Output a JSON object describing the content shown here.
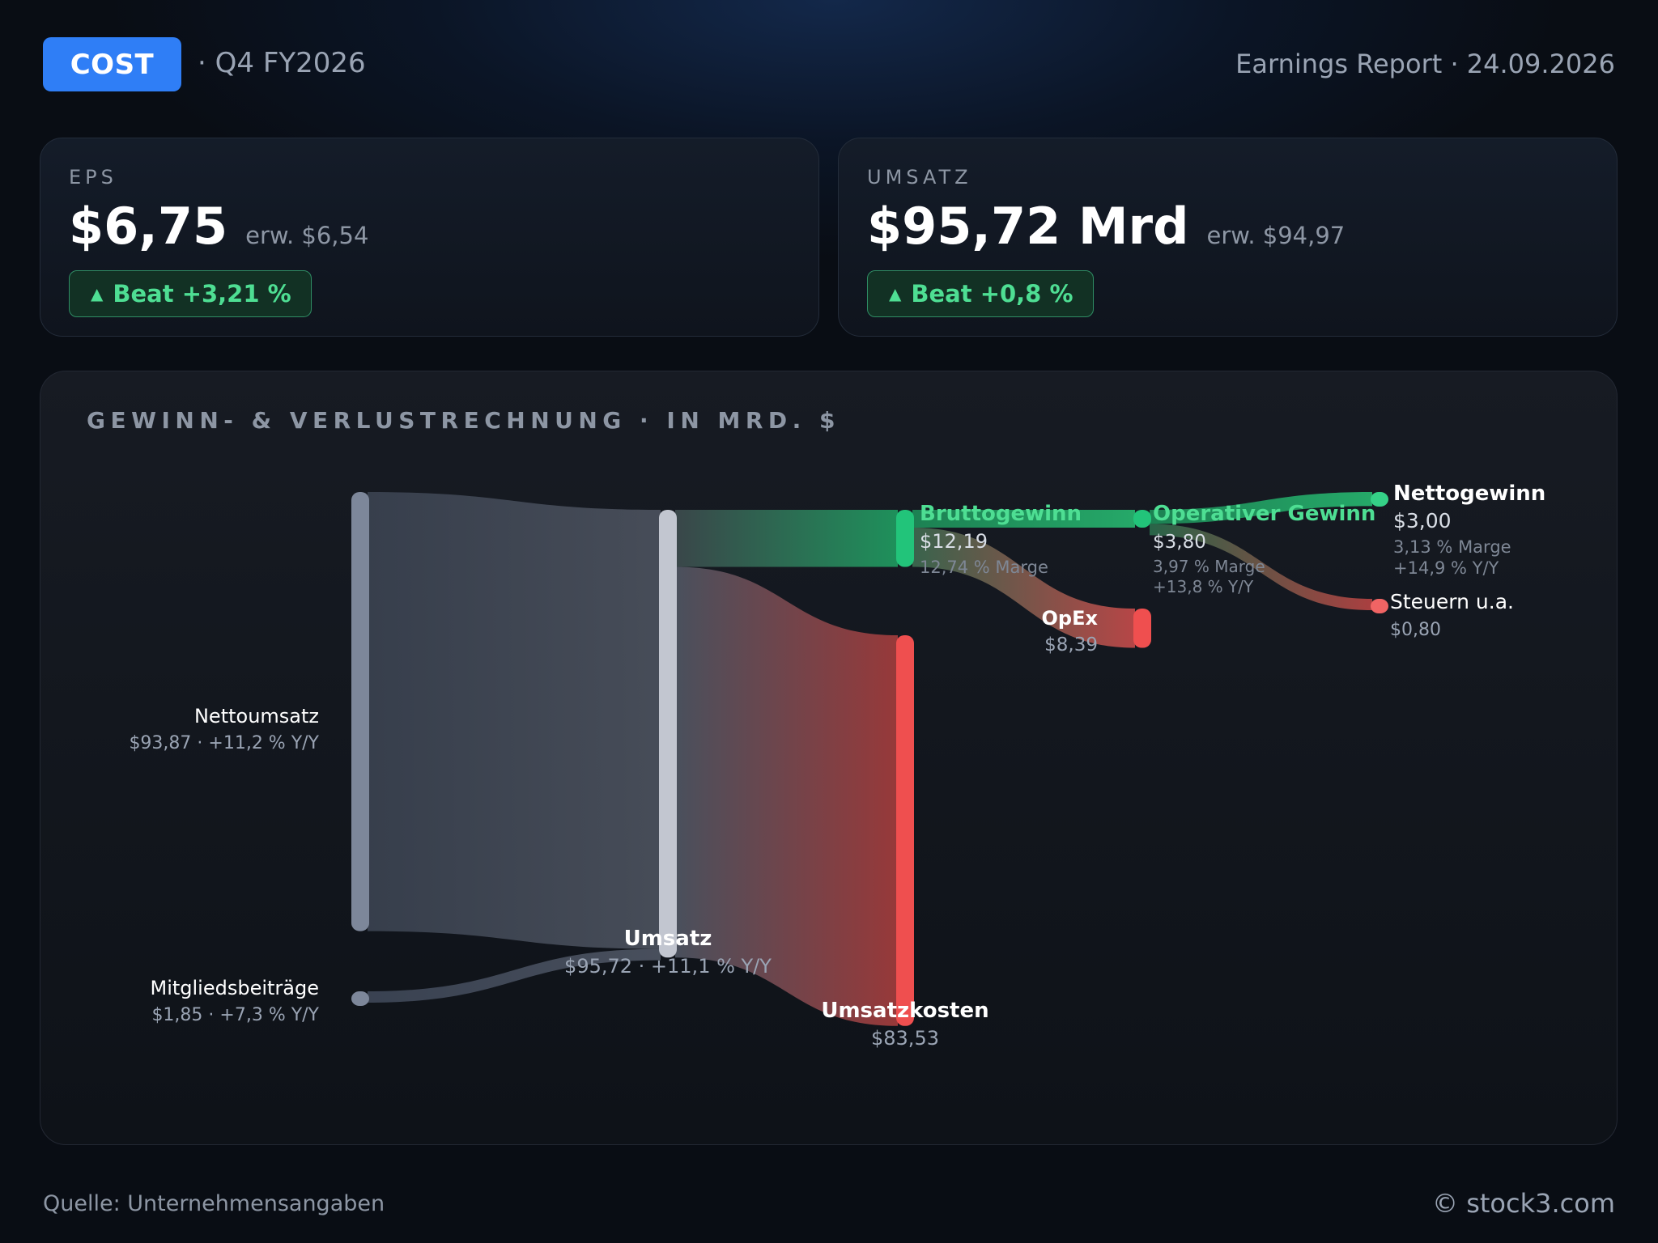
{
  "header": {
    "ticker": "COST",
    "quarter": "· Q4 FY2026",
    "report": "Earnings Report · 24.09.2026"
  },
  "cards": {
    "eps": {
      "label": "EPS",
      "value": "$6,75",
      "expected": "erw. $6,54",
      "beat": "Beat +3,21 %"
    },
    "revenue": {
      "label": "UMSATZ",
      "value": "$95,72 Mrd",
      "expected": "erw. $94,97",
      "beat": "Beat +0,8 %"
    }
  },
  "colors": {
    "accent": "#2f7ef6",
    "positive": "#22c47a",
    "negative": "#ef4f4f",
    "neutral": "#7d879a"
  },
  "chart_data": {
    "type": "sankey",
    "title": "GEWINN- & VERLUSTRECHNUNG · IN MRD. $",
    "nodes": [
      {
        "id": "nettoumsatz",
        "name": "Nettoumsatz",
        "value": 93.87,
        "label_value": "$93,87 · +11,2 % Y/Y"
      },
      {
        "id": "mitglied",
        "name": "Mitgliedsbeiträge",
        "value": 1.85,
        "label_value": "$1,85 · +7,3 % Y/Y"
      },
      {
        "id": "umsatz",
        "name": "Umsatz",
        "value": 95.72,
        "label_value": "$95,72 · +11,1 % Y/Y"
      },
      {
        "id": "umsatzkosten",
        "name": "Umsatzkosten",
        "value": 83.53,
        "label_value": "$83,53"
      },
      {
        "id": "brutto",
        "name": "Bruttogewinn",
        "value": 12.19,
        "label_value": "$12,19",
        "note": "12,74 % Marge"
      },
      {
        "id": "opex",
        "name": "OpEx",
        "value": 8.39,
        "label_value": "$8,39"
      },
      {
        "id": "operativ",
        "name": "Operativer Gewinn",
        "value": 3.8,
        "label_value": "$3,80",
        "note": "3,97 % Marge",
        "note2": "+13,8 % Y/Y"
      },
      {
        "id": "netto",
        "name": "Nettogewinn",
        "value": 3.0,
        "label_value": "$3,00",
        "note": "3,13 % Marge",
        "note2": "+14,9 % Y/Y"
      },
      {
        "id": "steuern",
        "name": "Steuern u.a.",
        "value": 0.8,
        "label_value": "$0,80"
      }
    ],
    "links": [
      {
        "source": "nettoumsatz",
        "target": "umsatz",
        "value": 93.87
      },
      {
        "source": "mitglied",
        "target": "umsatz",
        "value": 1.85
      },
      {
        "source": "umsatz",
        "target": "brutto",
        "value": 12.19
      },
      {
        "source": "umsatz",
        "target": "umsatzkosten",
        "value": 83.53
      },
      {
        "source": "brutto",
        "target": "operativ",
        "value": 3.8
      },
      {
        "source": "brutto",
        "target": "opex",
        "value": 8.39
      },
      {
        "source": "operativ",
        "target": "netto",
        "value": 3.0
      },
      {
        "source": "operativ",
        "target": "steuern",
        "value": 0.8
      }
    ]
  },
  "footer": {
    "source": "Quelle: Unternehmensangaben",
    "copyright": "© stock3.com"
  }
}
